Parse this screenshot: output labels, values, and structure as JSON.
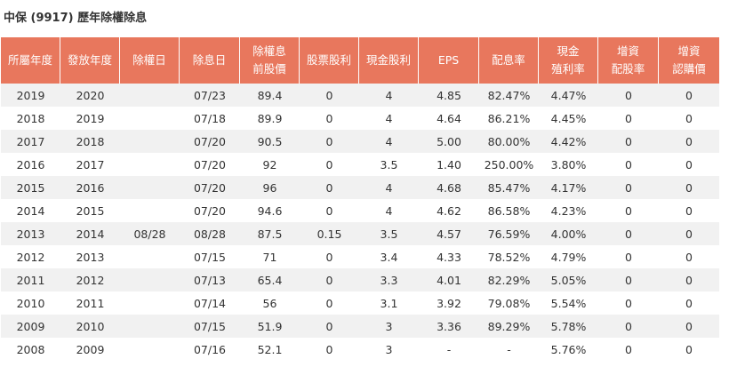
{
  "title": "中保 (9917) 歷年除權除息",
  "headers": [
    [
      "所屬年度"
    ],
    [
      "發放年度"
    ],
    [
      "除權日"
    ],
    [
      "除息日"
    ],
    [
      "除權息",
      "前股價"
    ],
    [
      "股票股利"
    ],
    [
      "現金股利"
    ],
    [
      "EPS"
    ],
    [
      "配息率"
    ],
    [
      "現金",
      "殖利率"
    ],
    [
      "增資",
      "配股率"
    ],
    [
      "增資",
      "認購價"
    ]
  ],
  "rows": [
    [
      "2019",
      "2020",
      "",
      "07/23",
      "89.4",
      "0",
      "4",
      "4.85",
      "82.47%",
      "4.47%",
      "0",
      "0"
    ],
    [
      "2018",
      "2019",
      "",
      "07/18",
      "89.9",
      "0",
      "4",
      "4.64",
      "86.21%",
      "4.45%",
      "0",
      "0"
    ],
    [
      "2017",
      "2018",
      "",
      "07/20",
      "90.5",
      "0",
      "4",
      "5.00",
      "80.00%",
      "4.42%",
      "0",
      "0"
    ],
    [
      "2016",
      "2017",
      "",
      "07/20",
      "92",
      "0",
      "3.5",
      "1.40",
      "250.00%",
      "3.80%",
      "0",
      "0"
    ],
    [
      "2015",
      "2016",
      "",
      "07/20",
      "96",
      "0",
      "4",
      "4.68",
      "85.47%",
      "4.17%",
      "0",
      "0"
    ],
    [
      "2014",
      "2015",
      "",
      "07/20",
      "94.6",
      "0",
      "4",
      "4.62",
      "86.58%",
      "4.23%",
      "0",
      "0"
    ],
    [
      "2013",
      "2014",
      "08/28",
      "08/28",
      "87.5",
      "0.15",
      "3.5",
      "4.57",
      "76.59%",
      "4.00%",
      "0",
      "0"
    ],
    [
      "2012",
      "2013",
      "",
      "07/15",
      "71",
      "0",
      "3.4",
      "4.33",
      "78.52%",
      "4.79%",
      "0",
      "0"
    ],
    [
      "2011",
      "2012",
      "",
      "07/13",
      "65.4",
      "0",
      "3.3",
      "4.01",
      "82.29%",
      "5.05%",
      "0",
      "0"
    ],
    [
      "2010",
      "2011",
      "",
      "07/14",
      "56",
      "0",
      "3.1",
      "3.92",
      "79.08%",
      "5.54%",
      "0",
      "0"
    ],
    [
      "2009",
      "2010",
      "",
      "07/15",
      "51.9",
      "0",
      "3",
      "3.36",
      "89.29%",
      "5.78%",
      "0",
      "0"
    ],
    [
      "2008",
      "2009",
      "",
      "07/16",
      "52.1",
      "0",
      "3",
      "-",
      "-",
      "5.76%",
      "0",
      "0"
    ]
  ],
  "colors": {
    "header_bg": "#e8775d",
    "header_text": "#ffffff",
    "row_odd": "#f1f1f1",
    "row_even": "#ffffff"
  }
}
